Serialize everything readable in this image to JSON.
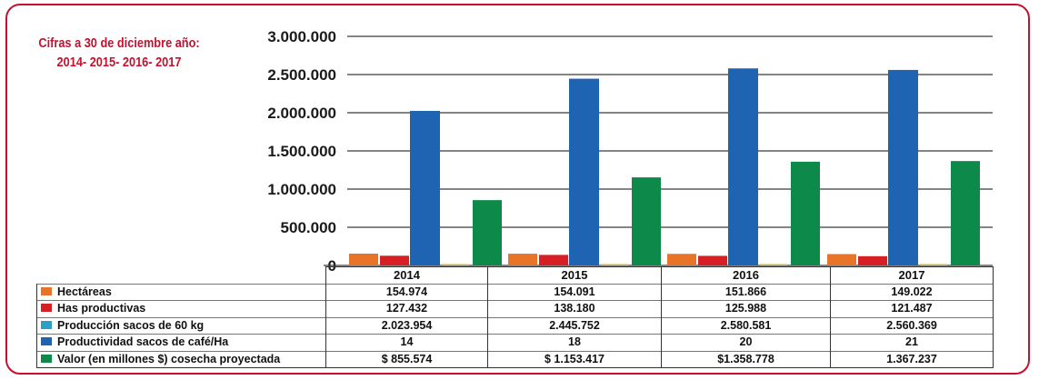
{
  "note": {
    "line1": "Cifras a 30 de diciembre año:",
    "line2": "2014- 2015- 2016- 2017"
  },
  "colors": {
    "frame": "#c8102e",
    "note": "#c8102e",
    "grid": "#333333"
  },
  "chart_data": {
    "type": "bar",
    "title": "",
    "xlabel": "",
    "ylabel": "",
    "ylim": [
      0,
      3000000
    ],
    "yticks": [
      0,
      500000,
      1000000,
      1500000,
      2000000,
      2500000,
      3000000
    ],
    "ytick_labels": [
      "0",
      "500.000",
      "1.000.000",
      "1.500.000",
      "2.000.000",
      "2.500.000",
      "3.000.000"
    ],
    "grid": true,
    "legend": "table-below",
    "categories": [
      "2014",
      "2015",
      "2016",
      "2017"
    ],
    "series": [
      {
        "name": "Hectáreas",
        "color": "#e8742a",
        "values": [
          154974,
          154091,
          151866,
          149022
        ],
        "labels": [
          "154.974",
          "154.091",
          "151.866",
          "149.022"
        ]
      },
      {
        "name": "Has productivas",
        "color": "#d71f26",
        "values": [
          127432,
          138180,
          125988,
          121487
        ],
        "labels": [
          "127.432",
          "138.180",
          "125.988",
          "121.487"
        ]
      },
      {
        "name": "Producción sacos de 60 kg",
        "color": "#1f63b3",
        "values": [
          2023954,
          2445752,
          2580581,
          2560369
        ],
        "labels": [
          "2.023.954",
          "2.445.752",
          "2.580.581",
          "2.560.369"
        ]
      },
      {
        "name": "Productividad sacos de café/Ha",
        "color": "#d9b340",
        "values": [
          14,
          18,
          20,
          21
        ],
        "labels": [
          "14",
          "18",
          "20",
          "21"
        ]
      },
      {
        "name": "Valor (en millones $) cosecha proyectada",
        "color": "#0d8a4a",
        "values": [
          855574,
          1153417,
          1358778,
          1367237
        ],
        "labels": [
          "$ 855.574",
          "$ 1.153.417",
          "$1.358.778",
          "1.367.237"
        ]
      }
    ],
    "legend_swatch_colors": [
      "#e8742a",
      "#d71f26",
      "#2aa0c8",
      "#1f63b3",
      "#0d8a4a"
    ]
  }
}
